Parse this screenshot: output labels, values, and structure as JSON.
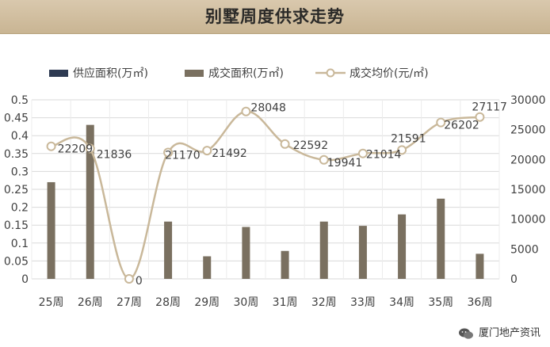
{
  "title": "别墅周度供求走势",
  "legend": {
    "supply": "供应面积(万㎡)",
    "deal": "成交面积(万㎡)",
    "price": "成交均价(元/㎡)"
  },
  "footer_text": "厦门地产资讯",
  "colors": {
    "supply": "#2e3a52",
    "deal": "#7a7060",
    "price_line": "#c9b89a",
    "grid": "#d9d9d9",
    "text": "#404040",
    "title_bg": "#d3c2a4"
  },
  "chart_data": {
    "type": "bar",
    "categories": [
      "25周",
      "26周",
      "27周",
      "28周",
      "29周",
      "30周",
      "31周",
      "32周",
      "33周",
      "34周",
      "35周",
      "36周"
    ],
    "y_left": {
      "min": 0,
      "max": 0.5,
      "step": 0.05,
      "ticks": [
        "0",
        "0.05",
        "0.1",
        "0.15",
        "0.2",
        "0.25",
        "0.3",
        "0.35",
        "0.4",
        "0.45",
        "0.5"
      ]
    },
    "y_right": {
      "min": 0,
      "max": 30000,
      "step": 5000,
      "ticks": [
        "0",
        "5000",
        "10000",
        "15000",
        "20000",
        "25000",
        "30000"
      ]
    },
    "series": [
      {
        "name": "供应面积(万㎡)",
        "type": "bar",
        "axis": "left",
        "values": [
          0,
          0,
          0,
          0,
          0,
          0,
          0,
          0,
          0,
          0,
          0,
          0
        ]
      },
      {
        "name": "成交面积(万㎡)",
        "type": "bar",
        "axis": "left",
        "values": [
          0.27,
          0.43,
          0,
          0.16,
          0.063,
          0.145,
          0.078,
          0.16,
          0.148,
          0.18,
          0.224,
          0.07
        ]
      },
      {
        "name": "成交均价(元/㎡)",
        "type": "line",
        "axis": "right",
        "values": [
          22209,
          21836,
          0,
          21170,
          21492,
          28048,
          22592,
          19941,
          21014,
          21591,
          26202,
          27117
        ],
        "labels": [
          "22209",
          "21836",
          "0",
          "21170",
          "21492",
          "28048",
          "22592",
          "19941",
          "21014",
          "21591",
          "26202",
          "27117"
        ]
      }
    ],
    "grid": true,
    "legend_position": "top"
  }
}
